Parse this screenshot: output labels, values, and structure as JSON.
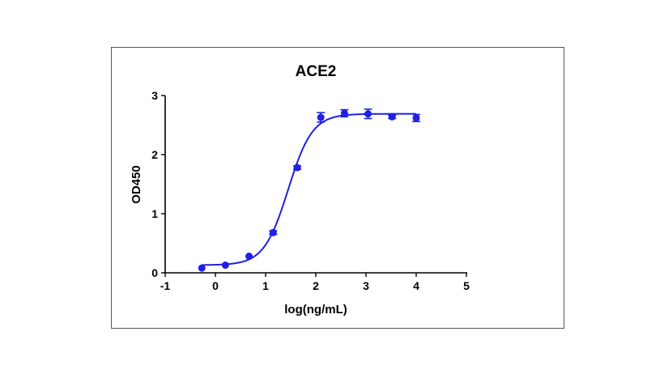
{
  "chart_data": {
    "type": "scatter",
    "title": "ACE2",
    "xlabel": "log(ng/mL)",
    "ylabel": "OD450",
    "xlim": [
      -1,
      5
    ],
    "ylim": [
      0,
      3
    ],
    "x_ticks": [
      "-1",
      "0",
      "1",
      "2",
      "3",
      "4",
      "5"
    ],
    "y_ticks": [
      "0",
      "1",
      "2",
      "3"
    ],
    "grid": false,
    "color": "#1f1fe6",
    "series": [
      {
        "x": [
          -0.27,
          0.2,
          0.67,
          1.15,
          1.63,
          2.1,
          2.57,
          3.04,
          3.52,
          4.0
        ],
        "y": [
          0.08,
          0.13,
          0.28,
          0.68,
          1.78,
          2.63,
          2.7,
          2.69,
          2.64,
          2.62
        ],
        "error": [
          0.02,
          0.02,
          0.02,
          0.03,
          0.03,
          0.08,
          0.06,
          0.08,
          0.03,
          0.06
        ]
      }
    ],
    "fit": {
      "model": "4PL",
      "bottom": 0.13,
      "top": 2.69,
      "logEC50": 1.45,
      "hill": 1.8
    }
  }
}
